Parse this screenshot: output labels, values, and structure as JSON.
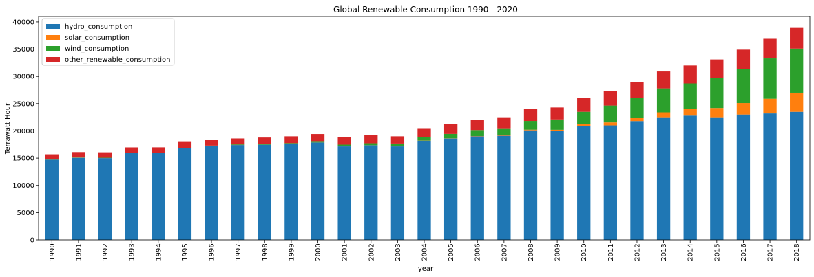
{
  "chart_data": {
    "type": "bar",
    "stacked": true,
    "title": "Global Renewable Consumption 1990 - 2020",
    "xlabel": "year",
    "ylabel": "Terrawatt Hour",
    "ylim": [
      0,
      41000
    ],
    "yticks": [
      0,
      5000,
      10000,
      15000,
      20000,
      25000,
      30000,
      35000,
      40000
    ],
    "grid": false,
    "legend_position": "top-left",
    "categories": [
      "1990",
      "1991",
      "1992",
      "1993",
      "1994",
      "1995",
      "1996",
      "1997",
      "1998",
      "1999",
      "2000",
      "2001",
      "2002",
      "2003",
      "2004",
      "2005",
      "2006",
      "2007",
      "2008",
      "2009",
      "2010",
      "2011",
      "2012",
      "2013",
      "2014",
      "2015",
      "2016",
      "2017",
      "2018"
    ],
    "series": [
      {
        "name": "hydro_consumption",
        "color": "#1f77b4",
        "values": [
          14700,
          15050,
          15000,
          15900,
          15900,
          16800,
          17200,
          17400,
          17450,
          17550,
          17850,
          17150,
          17350,
          17150,
          18200,
          18600,
          19000,
          19100,
          20100,
          20000,
          20900,
          21000,
          21800,
          22500,
          22800,
          22500,
          23000,
          23200,
          23500
        ]
      },
      {
        "name": "solar_consumption",
        "color": "#ff7f0e",
        "values": [
          10,
          10,
          10,
          10,
          10,
          10,
          10,
          10,
          10,
          10,
          20,
          20,
          20,
          20,
          30,
          40,
          50,
          80,
          120,
          200,
          300,
          550,
          600,
          900,
          1200,
          1700,
          2100,
          2700,
          3500
        ]
      },
      {
        "name": "wind_consumption",
        "color": "#2ca02c",
        "values": [
          40,
          50,
          60,
          60,
          70,
          80,
          90,
          100,
          120,
          190,
          250,
          300,
          350,
          500,
          600,
          800,
          1100,
          1300,
          1600,
          1900,
          2300,
          3100,
          3700,
          4400,
          4700,
          5500,
          6300,
          7400,
          8100
        ]
      },
      {
        "name": "other_renewable_consumption",
        "color": "#d62728",
        "values": [
          950,
          1000,
          1000,
          1000,
          1000,
          1200,
          1000,
          1100,
          1200,
          1250,
          1300,
          1330,
          1480,
          1330,
          1670,
          1860,
          1850,
          2020,
          2180,
          2200,
          2600,
          2650,
          2900,
          3100,
          3300,
          3400,
          3500,
          3600,
          3800
        ]
      }
    ]
  }
}
